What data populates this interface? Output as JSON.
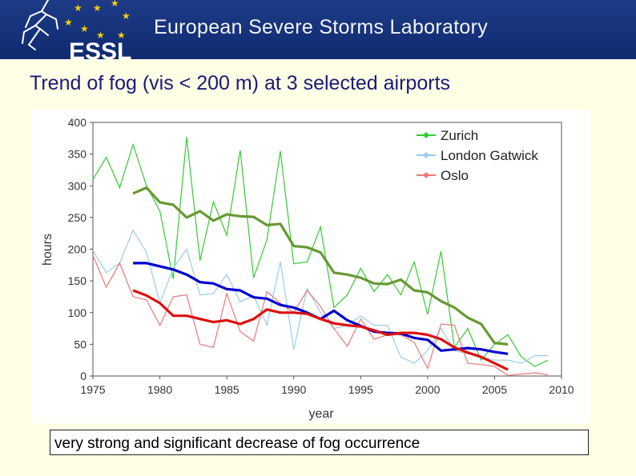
{
  "header": {
    "title": "European Severe Storms Laboratory",
    "logo_text": "ESSL",
    "colors": {
      "banner": "#15327a",
      "stars": "#f5d000"
    }
  },
  "slide": {
    "title": "Trend of fog (vis < 200 m) at 3 selected airports",
    "caption": "very strong and significant decrease of fog occurrence"
  },
  "chart_data": {
    "type": "line",
    "title": "",
    "xlabel": "year",
    "ylabel": "hours",
    "xlim": [
      1975,
      2010
    ],
    "ylim": [
      0,
      400
    ],
    "xticks": [
      1975,
      1980,
      1985,
      1990,
      1995,
      2000,
      2005,
      2010
    ],
    "yticks": [
      0,
      50,
      100,
      150,
      200,
      250,
      300,
      350,
      400
    ],
    "legend": "top-right",
    "series": [
      {
        "name": "Zurich",
        "color": "#33cc33",
        "x": [
          1975,
          1976,
          1977,
          1978,
          1979,
          1980,
          1981,
          1982,
          1983,
          1984,
          1985,
          1986,
          1987,
          1988,
          1989,
          1990,
          1991,
          1992,
          1993,
          1994,
          1995,
          1996,
          1997,
          1998,
          1999,
          2000,
          2001,
          2002,
          2003,
          2004,
          2005,
          2006,
          2007,
          2008,
          2009
        ],
        "values": [
          310,
          345,
          297,
          365,
          300,
          260,
          153,
          377,
          182,
          275,
          222,
          356,
          155,
          215,
          355,
          177,
          180,
          235,
          108,
          128,
          170,
          133,
          160,
          128,
          180,
          97,
          197,
          45,
          75,
          25,
          50,
          65,
          30,
          15,
          25
        ]
      },
      {
        "name": "London Gatwick",
        "color": "#99ccee",
        "x": [
          1975,
          1976,
          1977,
          1978,
          1979,
          1980,
          1981,
          1982,
          1983,
          1984,
          1985,
          1986,
          1987,
          1988,
          1989,
          1990,
          1991,
          1992,
          1993,
          1994,
          1995,
          1996,
          1997,
          1998,
          1999,
          2000,
          2001,
          2002,
          2003,
          2004,
          2005,
          2006,
          2007,
          2008,
          2009
        ],
        "values": [
          198,
          163,
          178,
          230,
          195,
          115,
          170,
          200,
          128,
          130,
          160,
          117,
          127,
          80,
          180,
          42,
          138,
          100,
          75,
          80,
          95,
          80,
          80,
          30,
          20,
          40,
          75,
          40,
          35,
          30,
          25,
          25,
          20,
          32,
          32
        ]
      },
      {
        "name": "Oslo",
        "color": "#ee7777",
        "x": [
          1975,
          1976,
          1977,
          1978,
          1979,
          1980,
          1981,
          1982,
          1983,
          1984,
          1985,
          1986,
          1987,
          1988,
          1989,
          1990,
          1991,
          1992,
          1993,
          1994,
          1995,
          1996,
          1997,
          1998,
          1999,
          2000,
          2001,
          2002,
          2003,
          2004,
          2005,
          2006,
          2007,
          2008,
          2009
        ],
        "values": [
          190,
          140,
          178,
          125,
          120,
          80,
          125,
          128,
          50,
          45,
          130,
          70,
          55,
          133,
          115,
          100,
          135,
          110,
          75,
          47,
          90,
          58,
          65,
          65,
          53,
          12,
          82,
          80,
          20,
          18,
          15,
          1,
          3,
          5,
          2
        ]
      }
    ],
    "trends": [
      {
        "name": "Zurich trend",
        "color": "#669933",
        "x": [
          1978,
          1979,
          1980,
          1981,
          1982,
          1983,
          1984,
          1985,
          1986,
          1987,
          1988,
          1989,
          1990,
          1991,
          1992,
          1993,
          1994,
          1995,
          1996,
          1997,
          1998,
          1999,
          2000,
          2001,
          2002,
          2003,
          2004,
          2005,
          2006
        ],
        "values": [
          288,
          297,
          274,
          270,
          250,
          260,
          245,
          255,
          252,
          251,
          238,
          240,
          205,
          203,
          195,
          163,
          160,
          155,
          146,
          145,
          152,
          135,
          132,
          118,
          108,
          92,
          82,
          52,
          50
        ]
      },
      {
        "name": "London Gatwick trend",
        "color": "#0000cc",
        "x": [
          1978,
          1979,
          1980,
          1981,
          1982,
          1983,
          1984,
          1985,
          1986,
          1987,
          1988,
          1989,
          1990,
          1991,
          1992,
          1993,
          1994,
          1995,
          1996,
          1997,
          1998,
          1999,
          2000,
          2001,
          2002,
          2003,
          2004,
          2005,
          2006
        ],
        "values": [
          178,
          178,
          173,
          168,
          160,
          148,
          146,
          137,
          135,
          124,
          122,
          112,
          108,
          100,
          90,
          103,
          88,
          79,
          70,
          68,
          67,
          60,
          57,
          40,
          42,
          44,
          42,
          38,
          35
        ]
      },
      {
        "name": "Oslo trend",
        "color": "#dd1111",
        "x": [
          1978,
          1979,
          1980,
          1981,
          1982,
          1983,
          1984,
          1985,
          1986,
          1987,
          1988,
          1989,
          1990,
          1991,
          1992,
          1993,
          1994,
          1995,
          1996,
          1997,
          1998,
          1999,
          2000,
          2001,
          2002,
          2003,
          2004,
          2005,
          2006
        ],
        "values": [
          135,
          127,
          115,
          95,
          95,
          90,
          85,
          88,
          82,
          90,
          105,
          100,
          100,
          98,
          90,
          83,
          80,
          78,
          72,
          65,
          68,
          68,
          65,
          58,
          45,
          37,
          30,
          20,
          10
        ]
      }
    ]
  }
}
